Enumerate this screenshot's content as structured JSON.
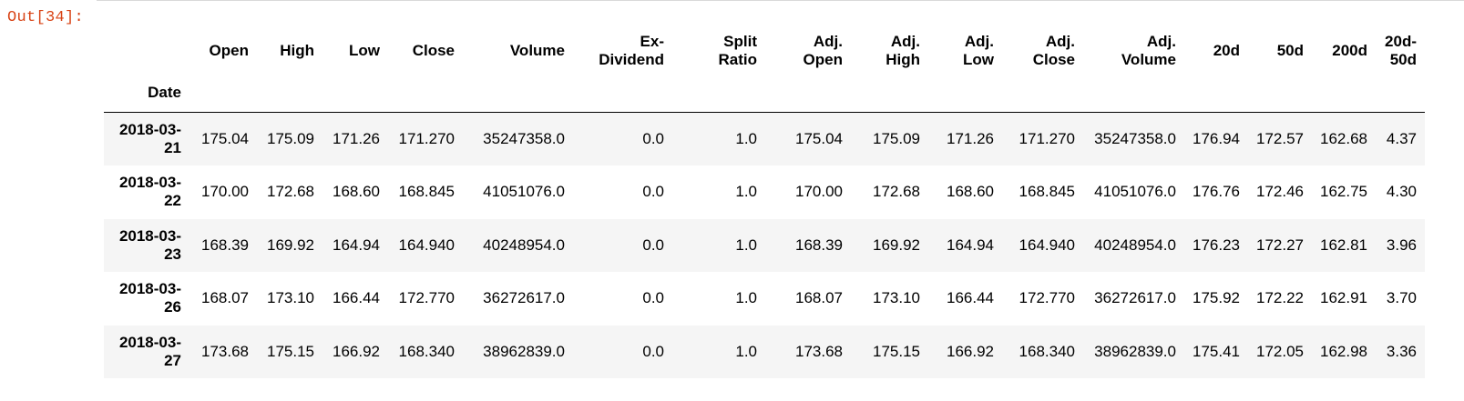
{
  "cell": {
    "prompt": "Out[34]:"
  },
  "table": {
    "index_name": "Date",
    "columns": [
      [
        "Open"
      ],
      [
        "High"
      ],
      [
        "Low"
      ],
      [
        "Close"
      ],
      [
        "Volume"
      ],
      [
        "Ex-",
        "Dividend"
      ],
      [
        "Split",
        "Ratio"
      ],
      [
        "Adj.",
        "Open"
      ],
      [
        "Adj.",
        "High"
      ],
      [
        "Adj.",
        "Low"
      ],
      [
        "Adj.",
        "Close"
      ],
      [
        "Adj.",
        "Volume"
      ],
      [
        "20d"
      ],
      [
        "50d"
      ],
      [
        "200d"
      ],
      [
        "20d-",
        "50d"
      ]
    ],
    "rows": [
      {
        "index": [
          "2018-03-",
          "21"
        ],
        "values": [
          "175.04",
          "175.09",
          "171.26",
          "171.270",
          "35247358.0",
          "0.0",
          "1.0",
          "175.04",
          "175.09",
          "171.26",
          "171.270",
          "35247358.0",
          "176.94",
          "172.57",
          "162.68",
          "4.37"
        ]
      },
      {
        "index": [
          "2018-03-",
          "22"
        ],
        "values": [
          "170.00",
          "172.68",
          "168.60",
          "168.845",
          "41051076.0",
          "0.0",
          "1.0",
          "170.00",
          "172.68",
          "168.60",
          "168.845",
          "41051076.0",
          "176.76",
          "172.46",
          "162.75",
          "4.30"
        ]
      },
      {
        "index": [
          "2018-03-",
          "23"
        ],
        "values": [
          "168.39",
          "169.92",
          "164.94",
          "164.940",
          "40248954.0",
          "0.0",
          "1.0",
          "168.39",
          "169.92",
          "164.94",
          "164.940",
          "40248954.0",
          "176.23",
          "172.27",
          "162.81",
          "3.96"
        ]
      },
      {
        "index": [
          "2018-03-",
          "26"
        ],
        "values": [
          "168.07",
          "173.10",
          "166.44",
          "172.770",
          "36272617.0",
          "0.0",
          "1.0",
          "168.07",
          "173.10",
          "166.44",
          "172.770",
          "36272617.0",
          "175.92",
          "172.22",
          "162.91",
          "3.70"
        ]
      },
      {
        "index": [
          "2018-03-",
          "27"
        ],
        "values": [
          "173.68",
          "175.15",
          "166.92",
          "168.340",
          "38962839.0",
          "0.0",
          "1.0",
          "173.68",
          "175.15",
          "166.92",
          "168.340",
          "38962839.0",
          "175.41",
          "172.05",
          "162.98",
          "3.36"
        ]
      }
    ]
  }
}
